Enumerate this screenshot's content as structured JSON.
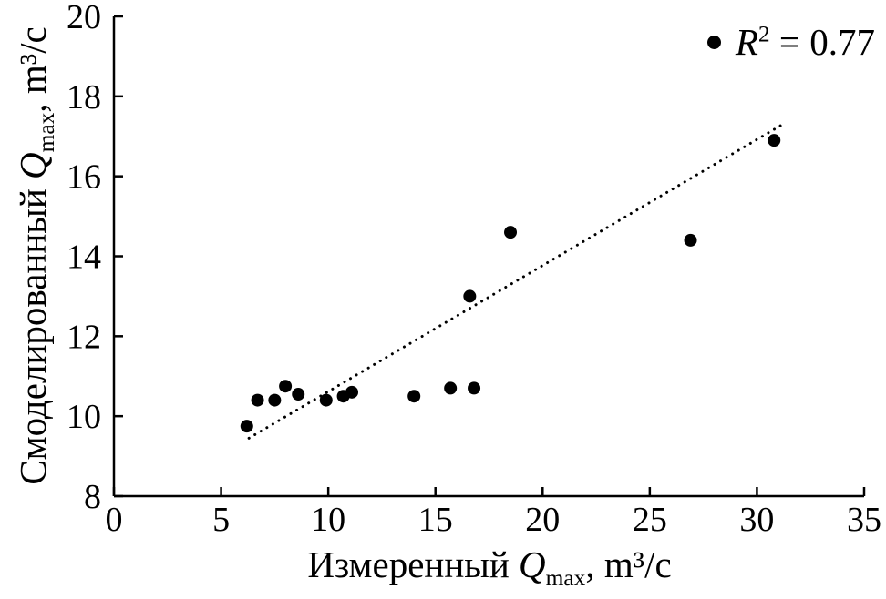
{
  "chart_data": {
    "type": "scatter",
    "title": "",
    "xlabel": "Измеренный Q_max, m³/c",
    "ylabel": "Смоделированный Q_max, m³/c",
    "xlim": [
      0,
      35
    ],
    "ylim": [
      8,
      20
    ],
    "xticks": [
      0,
      5,
      10,
      15,
      20,
      25,
      30,
      35
    ],
    "yticks": [
      8,
      10,
      12,
      14,
      16,
      18,
      20
    ],
    "grid": false,
    "marker_color": "#000000",
    "points": [
      [
        6.2,
        9.75
      ],
      [
        6.7,
        10.4
      ],
      [
        7.5,
        10.4
      ],
      [
        8.0,
        10.75
      ],
      [
        8.6,
        10.55
      ],
      [
        9.9,
        10.4
      ],
      [
        10.7,
        10.5
      ],
      [
        11.1,
        10.6
      ],
      [
        14.0,
        10.5
      ],
      [
        15.7,
        10.7
      ],
      [
        16.8,
        10.7
      ],
      [
        16.6,
        13.0
      ],
      [
        18.5,
        14.6
      ],
      [
        26.9,
        14.4
      ],
      [
        30.8,
        16.9
      ]
    ],
    "trendline": {
      "style": "dotted",
      "x1": 6.3,
      "y1": 9.45,
      "x2": 31.2,
      "y2": 17.3
    },
    "legend": {
      "label": "R² = 0.77",
      "position": "top-right"
    }
  },
  "labels": {
    "ylabel": {
      "prefix": "Смоделированный ",
      "q": "Q",
      "sub": "max",
      "suffix": ", m³/c"
    },
    "xlabel": {
      "prefix": "Измеренный ",
      "q": "Q",
      "sub": "max",
      "suffix": ", m³/c"
    },
    "legend": {
      "r": "R",
      "sup": "2",
      "rest": " = 0.77"
    }
  }
}
